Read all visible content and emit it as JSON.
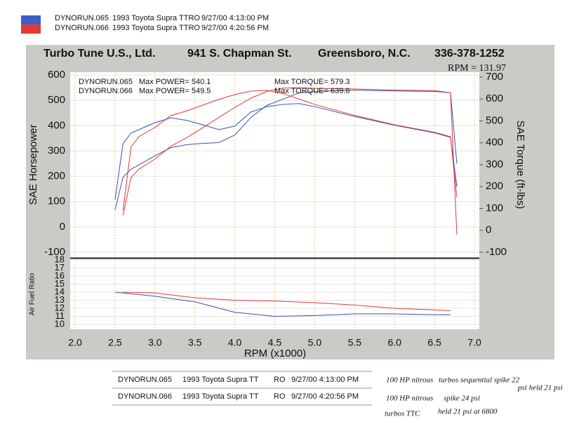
{
  "header": {
    "runs": [
      {
        "name": "DYNORUN.065",
        "vehicle": "1993 Toyota Supra TTRO",
        "date": "9/27/00 4:13:00 PM"
      },
      {
        "name": "DYNORUN.066",
        "vehicle": "1993 Toyota Supra TTRO",
        "date": "9/27/00 4:20:56 PM"
      }
    ],
    "swatch_colors": [
      "#3b5fc4",
      "#e23b35"
    ]
  },
  "banner": [
    "Turbo Tune U.S., Ltd.",
    "941 S. Chapman St.",
    "Greensboro, N.C.",
    "336-378-1252"
  ],
  "chart_data": [
    {
      "type": "line",
      "ylabel": "SAE Horsepower",
      "y2label": "SAE Torque (ft-lbs)",
      "annotation": "RPM = 131.97",
      "legend_runs": [
        "DYNORUN.065",
        "DYNORUN.066"
      ],
      "x": [
        2.5,
        2.6,
        2.7,
        2.8,
        3.0,
        3.2,
        3.4,
        3.6,
        3.8,
        4.0,
        4.2,
        4.4,
        4.6,
        4.8,
        5.0,
        5.5,
        6.0,
        6.5,
        6.7,
        6.78
      ],
      "series": [
        {
          "name": "Max POWER= 540.1",
          "color": "#3a4fb4",
          "values": [
            67,
            196,
            228,
            245,
            281,
            313,
            325,
            330,
            333,
            363,
            432,
            480,
            504,
            529,
            535,
            540.1,
            537,
            535,
            530,
            250
          ]
        },
        {
          "name": "Max POWER= 549.5",
          "color": "#e0393a",
          "values": [
            null,
            46,
            195,
            228,
            268,
            319,
            353,
            392,
            432,
            472,
            508,
            535,
            548,
            549.5,
            547,
            545,
            540,
            538,
            530,
            -30
          ]
        },
        {
          "name": "Max TORQUE= 579.3",
          "color": "#3a4fb4",
          "axis": "y2",
          "values": [
            140,
            396,
            444,
            460,
            492,
            514,
            502,
            482,
            460,
            476,
            540,
            565,
            575,
            579.3,
            565,
            520,
            480,
            445,
            425,
            200
          ]
        },
        {
          "name": "Max TORQUE= 639.6",
          "color": "#e0393a",
          "axis": "y2",
          "values": [
            null,
            92,
            380,
            428,
            470,
            524,
            546,
            572,
            598,
            620,
            636,
            639.6,
            625,
            600,
            575,
            525,
            482,
            448,
            428,
            150
          ]
        }
      ],
      "ylim": [
        -100,
        600
      ],
      "yticks": [
        -100,
        0,
        100,
        200,
        300,
        400,
        500,
        600
      ],
      "y2lim": [
        -100,
        700
      ],
      "y2ticks": [
        -100,
        0,
        100,
        200,
        300,
        400,
        500,
        600,
        700
      ],
      "grid": true
    },
    {
      "type": "line",
      "ylabel": "Air Fuel Ratio",
      "xlabel": "RPM (x1000)",
      "x": [
        2.5,
        2.6,
        3.0,
        3.5,
        4.0,
        4.5,
        5.0,
        5.5,
        6.0,
        6.5,
        6.7
      ],
      "series": [
        {
          "name": "DYNORUN.065",
          "color": "#3a4fb4",
          "values": [
            14.0,
            13.9,
            13.5,
            12.8,
            11.5,
            11.0,
            11.1,
            11.3,
            11.3,
            11.2,
            11.2
          ]
        },
        {
          "name": "DYNORUN.066",
          "color": "#e0393a",
          "values": [
            null,
            14.0,
            13.9,
            13.3,
            13.0,
            12.9,
            12.7,
            12.4,
            12.0,
            11.8,
            11.7
          ]
        }
      ],
      "xlim": [
        2.0,
        7.0
      ],
      "xticks": [
        {
          "value": 2.0,
          "label": "2.0"
        },
        2.5,
        {
          "value": 3.0,
          "label": "3.0"
        },
        3.5,
        {
          "value": 4.0,
          "label": "4.0"
        },
        4.5,
        {
          "value": 5.0,
          "label": "5.0"
        },
        5.5,
        {
          "value": 6.0,
          "label": "6.0"
        },
        6.5,
        {
          "value": 7.0,
          "label": "7.0"
        }
      ],
      "ylim": [
        10,
        18
      ],
      "yticks": [
        10,
        11,
        12,
        13,
        14,
        15,
        16,
        17,
        18
      ],
      "grid": true
    }
  ],
  "footer": {
    "rows": [
      [
        "DYNORUN.065",
        "1993 Toyota Supra TT",
        "RO",
        "9/27/00 4:13:00 PM"
      ],
      [
        "DYNORUN.066",
        "1993 Toyota Supra TT",
        "RO",
        "9/27/00 4:20:56 PM"
      ]
    ],
    "notes": [
      "100 HP nitrous",
      "turbos sequential spike 22",
      "psi held 21 psi",
      "100 HP nitrous",
      "spike 24 psi",
      "turbos TTC",
      "held 21 psi at 6800"
    ]
  }
}
